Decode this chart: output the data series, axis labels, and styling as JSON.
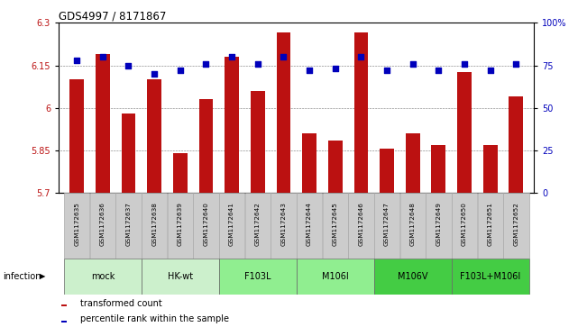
{
  "title": "GDS4997 / 8171867",
  "samples": [
    "GSM1172635",
    "GSM1172636",
    "GSM1172637",
    "GSM1172638",
    "GSM1172639",
    "GSM1172640",
    "GSM1172641",
    "GSM1172642",
    "GSM1172643",
    "GSM1172644",
    "GSM1172645",
    "GSM1172646",
    "GSM1172647",
    "GSM1172648",
    "GSM1172649",
    "GSM1172650",
    "GSM1172651",
    "GSM1172652"
  ],
  "bar_values": [
    6.1,
    6.19,
    5.98,
    6.1,
    5.84,
    6.03,
    6.18,
    6.06,
    6.265,
    5.91,
    5.885,
    6.265,
    5.855,
    5.91,
    5.87,
    6.125,
    5.87,
    6.04
  ],
  "percentile_values": [
    78,
    80,
    75,
    70,
    72,
    76,
    80,
    76,
    80,
    72,
    73,
    80,
    72,
    76,
    72,
    76,
    72,
    76
  ],
  "ylim_left": [
    5.7,
    6.3
  ],
  "ylim_right": [
    0,
    100
  ],
  "yticks_left": [
    5.7,
    5.85,
    6.0,
    6.15,
    6.3
  ],
  "ytick_labels_left": [
    "5.7",
    "5.85",
    "6",
    "6.15",
    "6.3"
  ],
  "yticks_right": [
    0,
    25,
    50,
    75,
    100
  ],
  "ytick_labels_right": [
    "0",
    "25",
    "50",
    "75",
    "100%"
  ],
  "bar_color": "#bb1111",
  "dot_color": "#0000bb",
  "legend_bar_label": "transformed count",
  "legend_dot_label": "percentile rank within the sample",
  "infection_label": "infection",
  "groups": [
    {
      "label": "mock",
      "indices": [
        0,
        1,
        2
      ],
      "color": "#ccf0cc"
    },
    {
      "label": "HK-wt",
      "indices": [
        3,
        4,
        5
      ],
      "color": "#ccf0cc"
    },
    {
      "label": "F103L",
      "indices": [
        6,
        7,
        8
      ],
      "color": "#90EE90"
    },
    {
      "label": "M106I",
      "indices": [
        9,
        10,
        11
      ],
      "color": "#90EE90"
    },
    {
      "label": "M106V",
      "indices": [
        12,
        13,
        14
      ],
      "color": "#44CC44"
    },
    {
      "label": "F103L+M106I",
      "indices": [
        15,
        16,
        17
      ],
      "color": "#44CC44"
    }
  ],
  "sample_box_color": "#cccccc",
  "sample_box_edge": "#aaaaaa"
}
